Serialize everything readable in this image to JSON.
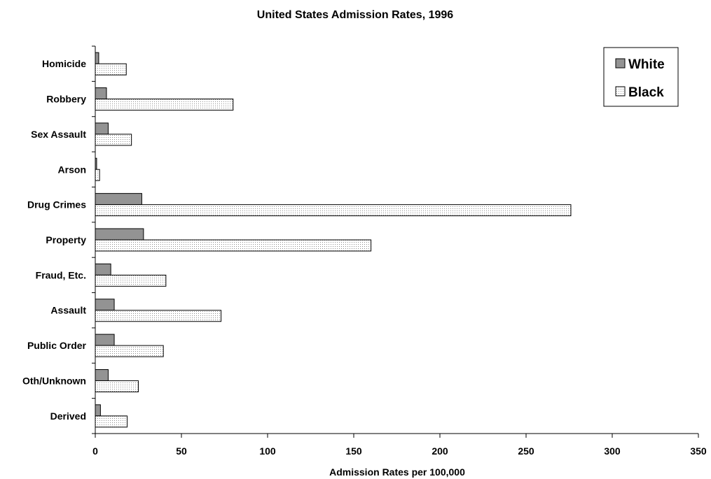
{
  "chart_data": {
    "type": "bar",
    "orientation": "horizontal",
    "title": "United States Admission Rates, 1996",
    "xlabel": "Admission Rates per 100,000",
    "ylabel": "",
    "xlim": [
      0,
      350
    ],
    "xticks": [
      "0",
      "50",
      "100",
      "150",
      "200",
      "250",
      "300",
      "350"
    ],
    "grid": false,
    "legend_position": "top-right",
    "categories": [
      "Homicide",
      "Robbery",
      "Sex Assault",
      "Arson",
      "Drug Crimes",
      "Property",
      "Fraud, Etc.",
      "Assault",
      "Public Order",
      "Oth/Unknown",
      "Derived"
    ],
    "series": [
      {
        "name": "White",
        "color": "#939393",
        "pattern": "solid",
        "values": [
          2,
          6.5,
          7.5,
          0.8,
          27,
          28,
          9,
          11,
          11,
          7.5,
          3
        ]
      },
      {
        "name": "Black",
        "color": "#ffffff",
        "pattern": "dotted",
        "values": [
          18,
          80,
          21,
          2.5,
          276,
          160,
          41,
          73,
          39.5,
          25,
          18.5
        ]
      }
    ]
  }
}
